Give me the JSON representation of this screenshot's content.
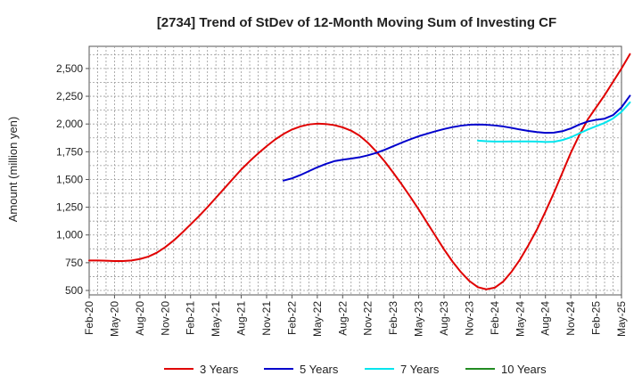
{
  "chart_data": {
    "type": "line",
    "title": "[2734]  Trend of StDev of 12-Month Moving Sum of Investing CF",
    "ylabel": "Amount (million yen)",
    "xlabel": "",
    "ylim": [
      460,
      2700
    ],
    "yticks": [
      500,
      750,
      1000,
      1250,
      1500,
      1750,
      2000,
      2250,
      2500
    ],
    "ytick_labels": [
      "500",
      "750",
      "1,000",
      "1,250",
      "1,500",
      "1,750",
      "2,000",
      "2,250",
      "2,500"
    ],
    "xlim": [
      "2020-02",
      "2025-05"
    ],
    "xtick_labels": [
      "Feb-20",
      "May-20",
      "Aug-20",
      "Nov-20",
      "Feb-21",
      "May-21",
      "Aug-21",
      "Nov-21",
      "Feb-22",
      "May-22",
      "Aug-22",
      "Nov-22",
      "Feb-23",
      "May-23",
      "Aug-23",
      "Nov-23",
      "Feb-24",
      "May-24",
      "Aug-24",
      "Nov-24",
      "Feb-25",
      "May-25"
    ],
    "grid": true,
    "legend_position": "bottom",
    "series": [
      {
        "name": "3 Years",
        "color": "#e00000",
        "points": [
          [
            "2020-02",
            770
          ],
          [
            "2020-03",
            770
          ],
          [
            "2020-04",
            768
          ],
          [
            "2020-05",
            765
          ],
          [
            "2020-06",
            765
          ],
          [
            "2020-07",
            770
          ],
          [
            "2020-08",
            783
          ],
          [
            "2020-09",
            805
          ],
          [
            "2020-10",
            840
          ],
          [
            "2020-11",
            890
          ],
          [
            "2020-12",
            950
          ],
          [
            "2021-01",
            1020
          ],
          [
            "2021-02",
            1095
          ],
          [
            "2021-03",
            1170
          ],
          [
            "2021-04",
            1250
          ],
          [
            "2021-05",
            1335
          ],
          [
            "2021-06",
            1420
          ],
          [
            "2021-07",
            1505
          ],
          [
            "2021-08",
            1590
          ],
          [
            "2021-09",
            1665
          ],
          [
            "2021-10",
            1735
          ],
          [
            "2021-11",
            1800
          ],
          [
            "2021-12",
            1860
          ],
          [
            "2022-01",
            1910
          ],
          [
            "2022-02",
            1950
          ],
          [
            "2022-03",
            1978
          ],
          [
            "2022-04",
            1996
          ],
          [
            "2022-05",
            2003
          ],
          [
            "2022-06",
            2000
          ],
          [
            "2022-07",
            1990
          ],
          [
            "2022-08",
            1970
          ],
          [
            "2022-09",
            1940
          ],
          [
            "2022-10",
            1895
          ],
          [
            "2022-11",
            1830
          ],
          [
            "2022-12",
            1750
          ],
          [
            "2023-01",
            1660
          ],
          [
            "2023-02",
            1560
          ],
          [
            "2023-03",
            1455
          ],
          [
            "2023-04",
            1345
          ],
          [
            "2023-05",
            1230
          ],
          [
            "2023-06",
            1110
          ],
          [
            "2023-07",
            990
          ],
          [
            "2023-08",
            870
          ],
          [
            "2023-09",
            760
          ],
          [
            "2023-10",
            665
          ],
          [
            "2023-11",
            585
          ],
          [
            "2023-12",
            530
          ],
          [
            "2024-01",
            510
          ],
          [
            "2024-02",
            525
          ],
          [
            "2024-03",
            580
          ],
          [
            "2024-04",
            670
          ],
          [
            "2024-05",
            780
          ],
          [
            "2024-06",
            910
          ],
          [
            "2024-07",
            1050
          ],
          [
            "2024-08",
            1210
          ],
          [
            "2024-09",
            1380
          ],
          [
            "2024-10",
            1560
          ],
          [
            "2024-11",
            1740
          ],
          [
            "2024-12",
            1900
          ],
          [
            "2025-01",
            2040
          ],
          [
            "2025-02",
            2150
          ],
          [
            "2025-03",
            2260
          ],
          [
            "2025-04",
            2380
          ],
          [
            "2025-05",
            2500
          ],
          [
            "2025-06",
            2630
          ]
        ]
      },
      {
        "name": "5 Years",
        "color": "#0000cc",
        "points": [
          [
            "2022-01",
            1490
          ],
          [
            "2022-02",
            1510
          ],
          [
            "2022-03",
            1540
          ],
          [
            "2022-04",
            1575
          ],
          [
            "2022-05",
            1610
          ],
          [
            "2022-06",
            1640
          ],
          [
            "2022-07",
            1665
          ],
          [
            "2022-08",
            1678
          ],
          [
            "2022-09",
            1688
          ],
          [
            "2022-10",
            1700
          ],
          [
            "2022-11",
            1718
          ],
          [
            "2022-12",
            1740
          ],
          [
            "2023-01",
            1768
          ],
          [
            "2023-02",
            1800
          ],
          [
            "2023-03",
            1832
          ],
          [
            "2023-04",
            1862
          ],
          [
            "2023-05",
            1890
          ],
          [
            "2023-06",
            1913
          ],
          [
            "2023-07",
            1935
          ],
          [
            "2023-08",
            1955
          ],
          [
            "2023-09",
            1972
          ],
          [
            "2023-10",
            1985
          ],
          [
            "2023-11",
            1993
          ],
          [
            "2023-12",
            1995
          ],
          [
            "2024-01",
            1993
          ],
          [
            "2024-02",
            1987
          ],
          [
            "2024-03",
            1978
          ],
          [
            "2024-04",
            1965
          ],
          [
            "2024-05",
            1950
          ],
          [
            "2024-06",
            1937
          ],
          [
            "2024-07",
            1927
          ],
          [
            "2024-08",
            1920
          ],
          [
            "2024-09",
            1922
          ],
          [
            "2024-10",
            1935
          ],
          [
            "2024-11",
            1960
          ],
          [
            "2024-12",
            1995
          ],
          [
            "2025-01",
            2022
          ],
          [
            "2025-02",
            2038
          ],
          [
            "2025-03",
            2048
          ],
          [
            "2025-04",
            2080
          ],
          [
            "2025-05",
            2150
          ],
          [
            "2025-06",
            2255
          ]
        ]
      },
      {
        "name": "7 Years",
        "color": "#00e5ee",
        "points": [
          [
            "2023-12",
            1850
          ],
          [
            "2024-01",
            1845
          ],
          [
            "2024-02",
            1842
          ],
          [
            "2024-03",
            1842
          ],
          [
            "2024-04",
            1843
          ],
          [
            "2024-05",
            1843
          ],
          [
            "2024-06",
            1843
          ],
          [
            "2024-07",
            1842
          ],
          [
            "2024-08",
            1838
          ],
          [
            "2024-09",
            1840
          ],
          [
            "2024-10",
            1855
          ],
          [
            "2024-11",
            1880
          ],
          [
            "2024-12",
            1915
          ],
          [
            "2025-01",
            1950
          ],
          [
            "2025-02",
            1980
          ],
          [
            "2025-03",
            2010
          ],
          [
            "2025-04",
            2050
          ],
          [
            "2025-05",
            2110
          ],
          [
            "2025-06",
            2195
          ]
        ]
      },
      {
        "name": "10 Years",
        "color": "#228b22",
        "points": []
      }
    ]
  }
}
